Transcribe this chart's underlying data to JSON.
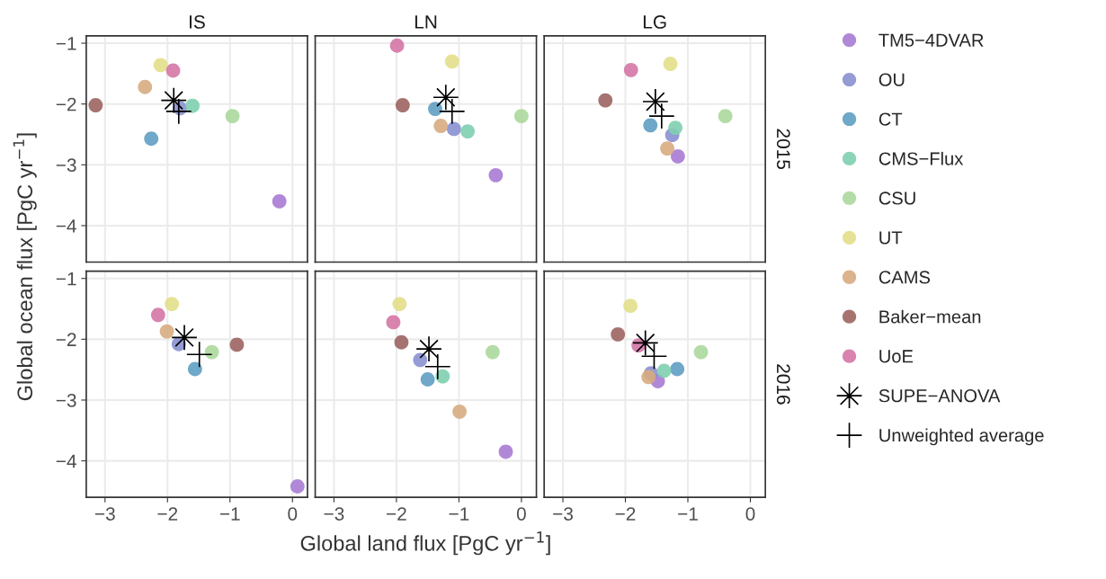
{
  "chart_data": [
    {
      "type": "scatter",
      "title": "IS",
      "legend": "right",
      "ylabel": "Global ocean flux [PgC yr$^{−1}$]",
      "xlim": [
        -3.3,
        0.24
      ],
      "ylim": [
        -4.6,
        -0.88
      ],
      "xticks": [
        {
          "value": -3,
          "label": "−3"
        },
        {
          "value": -2,
          "label": "−2"
        },
        {
          "value": -1,
          "label": "−1"
        },
        {
          "value": 0,
          "label": "0"
        }
      ],
      "yticks": [
        {
          "value": -1,
          "label": "−1"
        },
        {
          "value": -2,
          "label": "−2"
        },
        {
          "value": -3,
          "label": "−3"
        },
        {
          "value": -4,
          "label": "−4"
        }
      ],
      "grid": true,
      "tick_labels": "y",
      "series": [
        {
          "name": "TM5−4DVAR",
          "color": "#a87bd3",
          "marker": "circle",
          "x": [
            -0.21
          ],
          "values": [
            -3.6
          ]
        },
        {
          "name": "OU",
          "color": "#8890d0",
          "marker": "circle",
          "x": [
            -1.8
          ],
          "values": [
            -2.07
          ]
        },
        {
          "name": "CT",
          "color": "#5f9fc2",
          "marker": "circle",
          "x": [
            -2.26
          ],
          "values": [
            -2.57
          ]
        },
        {
          "name": "CMS−Flux",
          "color": "#7fcfb0",
          "marker": "circle",
          "x": [
            -1.6
          ],
          "values": [
            -2.03
          ]
        },
        {
          "name": "CSU",
          "color": "#acd89c",
          "marker": "circle",
          "x": [
            -0.96
          ],
          "values": [
            -2.2
          ]
        },
        {
          "name": "UT",
          "color": "#e3df8a",
          "marker": "circle",
          "x": [
            -2.11
          ],
          "values": [
            -1.36
          ]
        },
        {
          "name": "CAMS",
          "color": "#d7ab80",
          "marker": "circle",
          "x": [
            -2.36
          ],
          "values": [
            -1.72
          ]
        },
        {
          "name": "Baker−mean",
          "color": "#9c6462",
          "marker": "circle",
          "x": [
            -3.15
          ],
          "values": [
            -2.02
          ]
        },
        {
          "name": "UoE",
          "color": "#d477a6",
          "marker": "circle",
          "x": [
            -1.91
          ],
          "values": [
            -1.45
          ]
        },
        {
          "name": "SUPE−ANOVA",
          "color": "#000000",
          "marker": "star",
          "x": [
            -1.9
          ],
          "values": [
            -1.94
          ]
        },
        {
          "name": "Unweighted average",
          "color": "#000000",
          "marker": "cross",
          "x": [
            -1.82
          ],
          "values": [
            -2.12
          ]
        }
      ]
    },
    {
      "type": "scatter",
      "title": "LN",
      "legend": "right",
      "xlim": [
        -3.3,
        0.24
      ],
      "ylim": [
        -4.6,
        -0.88
      ],
      "xticks": [
        {
          "value": -3,
          "label": "−3"
        },
        {
          "value": -2,
          "label": "−2"
        },
        {
          "value": -1,
          "label": "−1"
        },
        {
          "value": 0,
          "label": "0"
        }
      ],
      "yticks": [
        {
          "value": -1,
          "label": "−1"
        },
        {
          "value": -2,
          "label": "−2"
        },
        {
          "value": -3,
          "label": "−3"
        },
        {
          "value": -4,
          "label": "−4"
        }
      ],
      "grid": true,
      "tick_labels": false,
      "series": [
        {
          "name": "TM5−4DVAR",
          "color": "#a87bd3",
          "marker": "circle",
          "x": [
            -0.41
          ],
          "values": [
            -3.17
          ]
        },
        {
          "name": "OU",
          "color": "#8890d0",
          "marker": "circle",
          "x": [
            -1.08
          ],
          "values": [
            -2.41
          ]
        },
        {
          "name": "CT",
          "color": "#5f9fc2",
          "marker": "circle",
          "x": [
            -1.38
          ],
          "values": [
            -2.08
          ]
        },
        {
          "name": "CMS−Flux",
          "color": "#7fcfb0",
          "marker": "circle",
          "x": [
            -0.86
          ],
          "values": [
            -2.45
          ]
        },
        {
          "name": "CSU",
          "color": "#acd89c",
          "marker": "circle",
          "x": [
            0.0
          ],
          "values": [
            -2.2
          ]
        },
        {
          "name": "UT",
          "color": "#e3df8a",
          "marker": "circle",
          "x": [
            -1.11
          ],
          "values": [
            -1.3
          ]
        },
        {
          "name": "CAMS",
          "color": "#d7ab80",
          "marker": "circle",
          "x": [
            -1.29
          ],
          "values": [
            -2.36
          ]
        },
        {
          "name": "Baker−mean",
          "color": "#9c6462",
          "marker": "circle",
          "x": [
            -1.9
          ],
          "values": [
            -2.02
          ]
        },
        {
          "name": "UoE",
          "color": "#d477a6",
          "marker": "circle",
          "x": [
            -1.99
          ],
          "values": [
            -1.04
          ]
        },
        {
          "name": "SUPE−ANOVA",
          "color": "#000000",
          "marker": "star",
          "x": [
            -1.21
          ],
          "values": [
            -1.89
          ]
        },
        {
          "name": "Unweighted average",
          "color": "#000000",
          "marker": "cross",
          "x": [
            -1.11
          ],
          "values": [
            -2.12
          ]
        }
      ]
    },
    {
      "type": "scatter",
      "title": "LG",
      "annotations": [
        "2015"
      ],
      "legend": "right",
      "xlim": [
        -3.3,
        0.24
      ],
      "ylim": [
        -4.6,
        -0.88
      ],
      "xticks": [
        {
          "value": -3,
          "label": "−3"
        },
        {
          "value": -2,
          "label": "−2"
        },
        {
          "value": -1,
          "label": "−1"
        },
        {
          "value": 0,
          "label": "0"
        }
      ],
      "yticks": [
        {
          "value": -1,
          "label": "−1"
        },
        {
          "value": -2,
          "label": "−2"
        },
        {
          "value": -3,
          "label": "−3"
        },
        {
          "value": -4,
          "label": "−4"
        }
      ],
      "grid": true,
      "tick_labels": false,
      "series": [
        {
          "name": "TM5−4DVAR",
          "color": "#a87bd3",
          "marker": "circle",
          "x": [
            -1.16
          ],
          "values": [
            -2.86
          ]
        },
        {
          "name": "OU",
          "color": "#8890d0",
          "marker": "circle",
          "x": [
            -1.25
          ],
          "values": [
            -2.51
          ]
        },
        {
          "name": "CT",
          "color": "#5f9fc2",
          "marker": "circle",
          "x": [
            -1.6
          ],
          "values": [
            -2.35
          ]
        },
        {
          "name": "CMS−Flux",
          "color": "#7fcfb0",
          "marker": "circle",
          "x": [
            -1.2
          ],
          "values": [
            -2.39
          ]
        },
        {
          "name": "CSU",
          "color": "#acd89c",
          "marker": "circle",
          "x": [
            -0.4
          ],
          "values": [
            -2.2
          ]
        },
        {
          "name": "UT",
          "color": "#e3df8a",
          "marker": "circle",
          "x": [
            -1.28
          ],
          "values": [
            -1.34
          ]
        },
        {
          "name": "CAMS",
          "color": "#d7ab80",
          "marker": "circle",
          "x": [
            -1.33
          ],
          "values": [
            -2.73
          ]
        },
        {
          "name": "Baker−mean",
          "color": "#9c6462",
          "marker": "circle",
          "x": [
            -2.32
          ],
          "values": [
            -1.94
          ]
        },
        {
          "name": "UoE",
          "color": "#d477a6",
          "marker": "circle",
          "x": [
            -1.91
          ],
          "values": [
            -1.44
          ]
        },
        {
          "name": "SUPE−ANOVA",
          "color": "#000000",
          "marker": "star",
          "x": [
            -1.52
          ],
          "values": [
            -1.96
          ]
        },
        {
          "name": "Unweighted average",
          "color": "#000000",
          "marker": "cross",
          "x": [
            -1.42
          ],
          "values": [
            -2.2
          ]
        }
      ]
    },
    {
      "type": "scatter",
      "legend": "right",
      "xlim": [
        -3.3,
        0.24
      ],
      "ylim": [
        -4.6,
        -0.88
      ],
      "xticks": [
        {
          "value": -3,
          "label": "−3"
        },
        {
          "value": -2,
          "label": "−2"
        },
        {
          "value": -1,
          "label": "−1"
        },
        {
          "value": 0,
          "label": "0"
        }
      ],
      "yticks": [
        {
          "value": -1,
          "label": "−1"
        },
        {
          "value": -2,
          "label": "−2"
        },
        {
          "value": -3,
          "label": "−3"
        },
        {
          "value": -4,
          "label": "−4"
        }
      ],
      "grid": true,
      "series": [
        {
          "name": "TM5−4DVAR",
          "color": "#a87bd3",
          "marker": "circle",
          "x": [
            0.08
          ],
          "values": [
            -4.42
          ]
        },
        {
          "name": "OU",
          "color": "#8890d0",
          "marker": "circle",
          "x": [
            -1.82
          ],
          "values": [
            -2.08
          ]
        },
        {
          "name": "CT",
          "color": "#5f9fc2",
          "marker": "circle",
          "x": [
            -1.56
          ],
          "values": [
            -2.49
          ]
        },
        {
          "name": "CSU",
          "color": "#acd89c",
          "marker": "circle",
          "x": [
            -1.29
          ],
          "values": [
            -2.21
          ]
        },
        {
          "name": "UT",
          "color": "#e3df8a",
          "marker": "circle",
          "x": [
            -1.93
          ],
          "values": [
            -1.42
          ]
        },
        {
          "name": "CAMS",
          "color": "#d7ab80",
          "marker": "circle",
          "x": [
            -2.01
          ],
          "values": [
            -1.87
          ]
        },
        {
          "name": "Baker−mean",
          "color": "#9c6462",
          "marker": "circle",
          "x": [
            -0.89
          ],
          "values": [
            -2.09
          ]
        },
        {
          "name": "UoE",
          "color": "#d477a6",
          "marker": "circle",
          "x": [
            -2.15
          ],
          "values": [
            -1.6
          ]
        },
        {
          "name": "SUPE−ANOVA",
          "color": "#000000",
          "marker": "star",
          "x": [
            -1.73
          ],
          "values": [
            -1.97
          ]
        },
        {
          "name": "Unweighted average",
          "color": "#000000",
          "marker": "cross",
          "x": [
            -1.49
          ],
          "values": [
            -2.25
          ]
        }
      ]
    },
    {
      "type": "scatter",
      "legend": "right",
      "xlabel": "Global land flux [PgC yr$^{−1}$]",
      "xlim": [
        -3.3,
        0.24
      ],
      "ylim": [
        -4.6,
        -0.88
      ],
      "xticks": [
        {
          "value": -3,
          "label": "−3"
        },
        {
          "value": -2,
          "label": "−2"
        },
        {
          "value": -1,
          "label": "−1"
        },
        {
          "value": 0,
          "label": "0"
        }
      ],
      "yticks": [
        {
          "value": -1,
          "label": "−1"
        },
        {
          "value": -2,
          "label": "−2"
        },
        {
          "value": -3,
          "label": "−3"
        },
        {
          "value": -4,
          "label": "−4"
        }
      ],
      "grid": true,
      "tick_labels": "x",
      "series": [
        {
          "name": "TM5−4DVAR",
          "color": "#a87bd3",
          "marker": "circle",
          "x": [
            -0.25
          ],
          "values": [
            -3.85
          ]
        },
        {
          "name": "OU",
          "color": "#8890d0",
          "marker": "circle",
          "x": [
            -1.62
          ],
          "values": [
            -2.34
          ]
        },
        {
          "name": "CT",
          "color": "#5f9fc2",
          "marker": "circle",
          "x": [
            -1.5
          ],
          "values": [
            -2.66
          ]
        },
        {
          "name": "CMS−Flux",
          "color": "#7fcfb0",
          "marker": "circle",
          "x": [
            -1.26
          ],
          "values": [
            -2.61
          ]
        },
        {
          "name": "CSU",
          "color": "#acd89c",
          "marker": "circle",
          "x": [
            -0.46
          ],
          "values": [
            -2.21
          ]
        },
        {
          "name": "UT",
          "color": "#e3df8a",
          "marker": "circle",
          "x": [
            -1.95
          ],
          "values": [
            -1.42
          ]
        },
        {
          "name": "CAMS",
          "color": "#d7ab80",
          "marker": "circle",
          "x": [
            -0.99
          ],
          "values": [
            -3.19
          ]
        },
        {
          "name": "Baker−mean",
          "color": "#9c6462",
          "marker": "circle",
          "x": [
            -1.92
          ],
          "values": [
            -2.05
          ]
        },
        {
          "name": "UoE",
          "color": "#d477a6",
          "marker": "circle",
          "x": [
            -2.05
          ],
          "values": [
            -1.72
          ]
        },
        {
          "name": "SUPE−ANOVA",
          "color": "#000000",
          "marker": "star",
          "x": [
            -1.48
          ],
          "values": [
            -2.16
          ]
        },
        {
          "name": "Unweighted average",
          "color": "#000000",
          "marker": "cross",
          "x": [
            -1.34
          ],
          "values": [
            -2.45
          ]
        }
      ]
    },
    {
      "type": "scatter",
      "legend": "right",
      "annotations": [
        "2016"
      ],
      "xlim": [
        -3.3,
        0.24
      ],
      "ylim": [
        -4.6,
        -0.88
      ],
      "xticks": [
        {
          "value": -3,
          "label": "−3"
        },
        {
          "value": -2,
          "label": "−2"
        },
        {
          "value": -1,
          "label": "−1"
        },
        {
          "value": 0,
          "label": "0"
        }
      ],
      "yticks": [
        {
          "value": -1,
          "label": "−1"
        },
        {
          "value": -2,
          "label": "−2"
        },
        {
          "value": -3,
          "label": "−3"
        },
        {
          "value": -4,
          "label": "−4"
        }
      ],
      "grid": true,
      "tick_labels": "x",
      "series": [
        {
          "name": "TM5−4DVAR",
          "color": "#a87bd3",
          "marker": "circle",
          "x": [
            -1.48
          ],
          "values": [
            -2.69
          ]
        },
        {
          "name": "OU",
          "color": "#8890d0",
          "marker": "circle",
          "x": [
            -1.59
          ],
          "values": [
            -2.56
          ]
        },
        {
          "name": "CT",
          "color": "#5f9fc2",
          "marker": "circle",
          "x": [
            -1.17
          ],
          "values": [
            -2.49
          ]
        },
        {
          "name": "CMS−Flux",
          "color": "#7fcfb0",
          "marker": "circle",
          "x": [
            -1.38
          ],
          "values": [
            -2.52
          ]
        },
        {
          "name": "CSU",
          "color": "#acd89c",
          "marker": "circle",
          "x": [
            -0.79
          ],
          "values": [
            -2.21
          ]
        },
        {
          "name": "UT",
          "color": "#e3df8a",
          "marker": "circle",
          "x": [
            -1.92
          ],
          "values": [
            -1.45
          ]
        },
        {
          "name": "CAMS",
          "color": "#d7ab80",
          "marker": "circle",
          "x": [
            -1.63
          ],
          "values": [
            -2.62
          ]
        },
        {
          "name": "Baker−mean",
          "color": "#9c6462",
          "marker": "circle",
          "x": [
            -2.12
          ],
          "values": [
            -1.92
          ]
        },
        {
          "name": "UoE",
          "color": "#d477a6",
          "marker": "circle",
          "x": [
            -1.79
          ],
          "values": [
            -2.1
          ]
        },
        {
          "name": "SUPE−ANOVA",
          "color": "#000000",
          "marker": "star",
          "x": [
            -1.68
          ],
          "values": [
            -2.06
          ]
        },
        {
          "name": "Unweighted average",
          "color": "#000000",
          "marker": "cross",
          "x": [
            -1.54
          ],
          "values": [
            -2.28
          ]
        }
      ]
    }
  ]
}
